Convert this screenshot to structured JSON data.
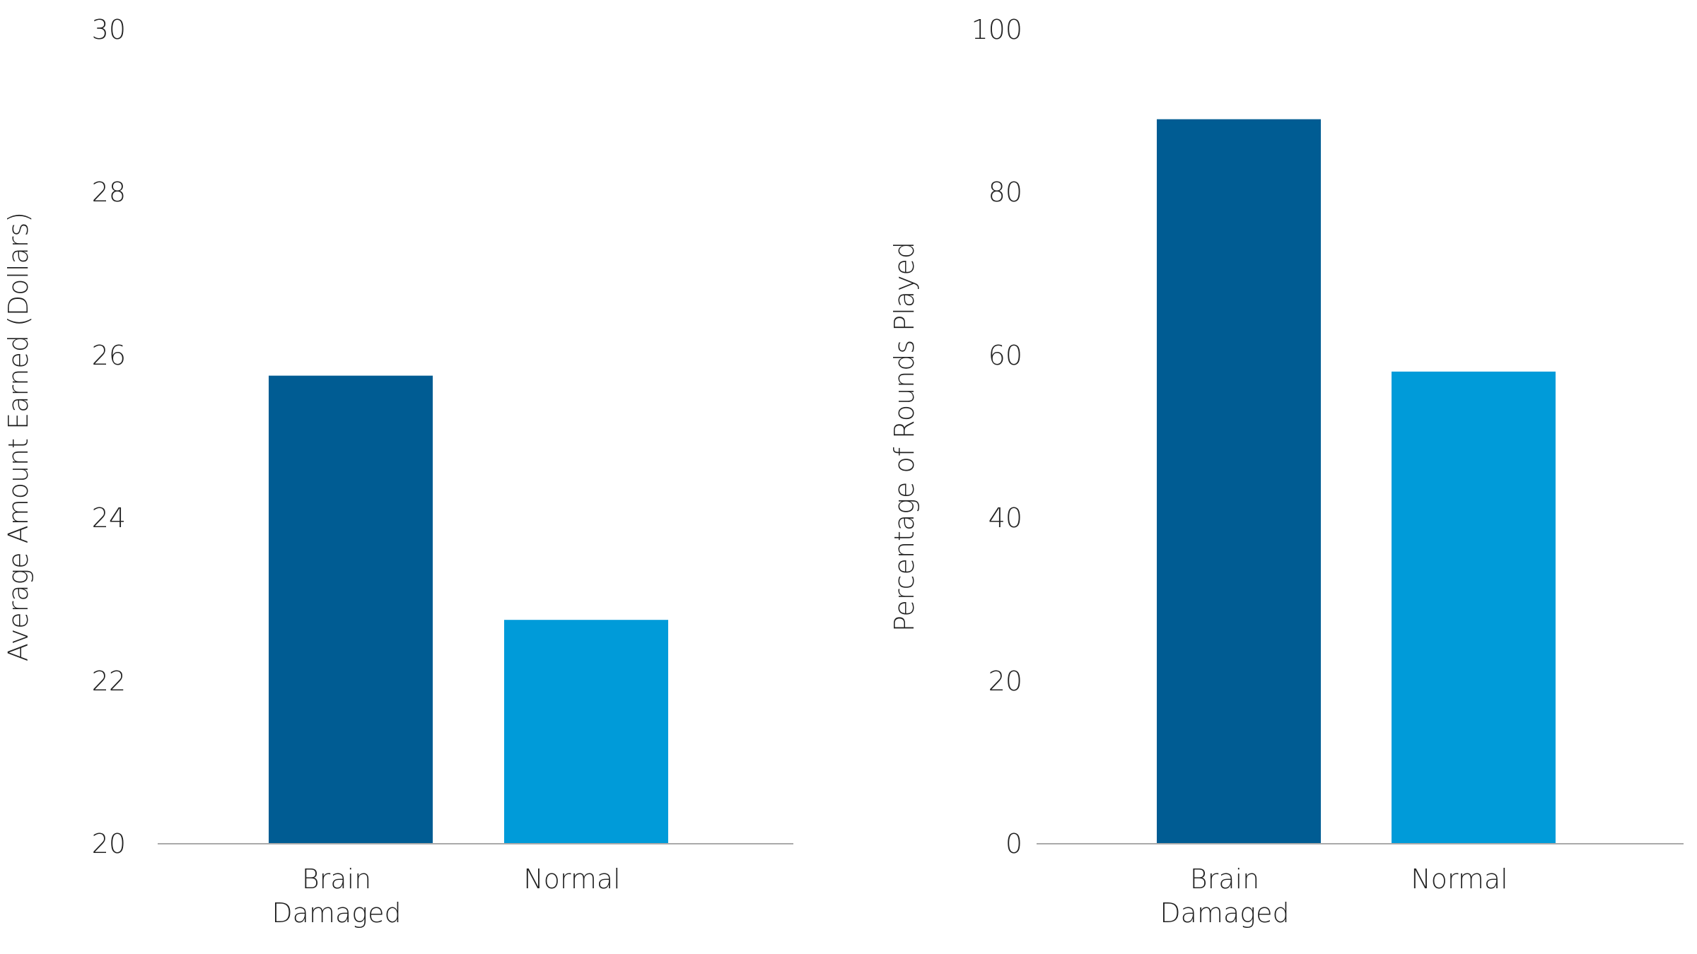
{
  "chart_data": [
    {
      "type": "bar",
      "ylabel": "Average Amount Earned (Dollars)",
      "categories": [
        "Brain Damaged",
        "Normal"
      ],
      "values": [
        25.75,
        22.75
      ],
      "colors": [
        "#005c93",
        "#009bd9"
      ],
      "ylim": [
        20,
        30
      ],
      "yticks": [
        20,
        22,
        24,
        26,
        28,
        30
      ]
    },
    {
      "type": "bar",
      "ylabel": "Percentage of Rounds Played",
      "categories": [
        "Brain Damaged",
        "Normal"
      ],
      "values": [
        89,
        58
      ],
      "colors": [
        "#005c93",
        "#009bd9"
      ],
      "ylim": [
        0,
        100
      ],
      "yticks": [
        0,
        20,
        40,
        60,
        80,
        100
      ]
    }
  ]
}
